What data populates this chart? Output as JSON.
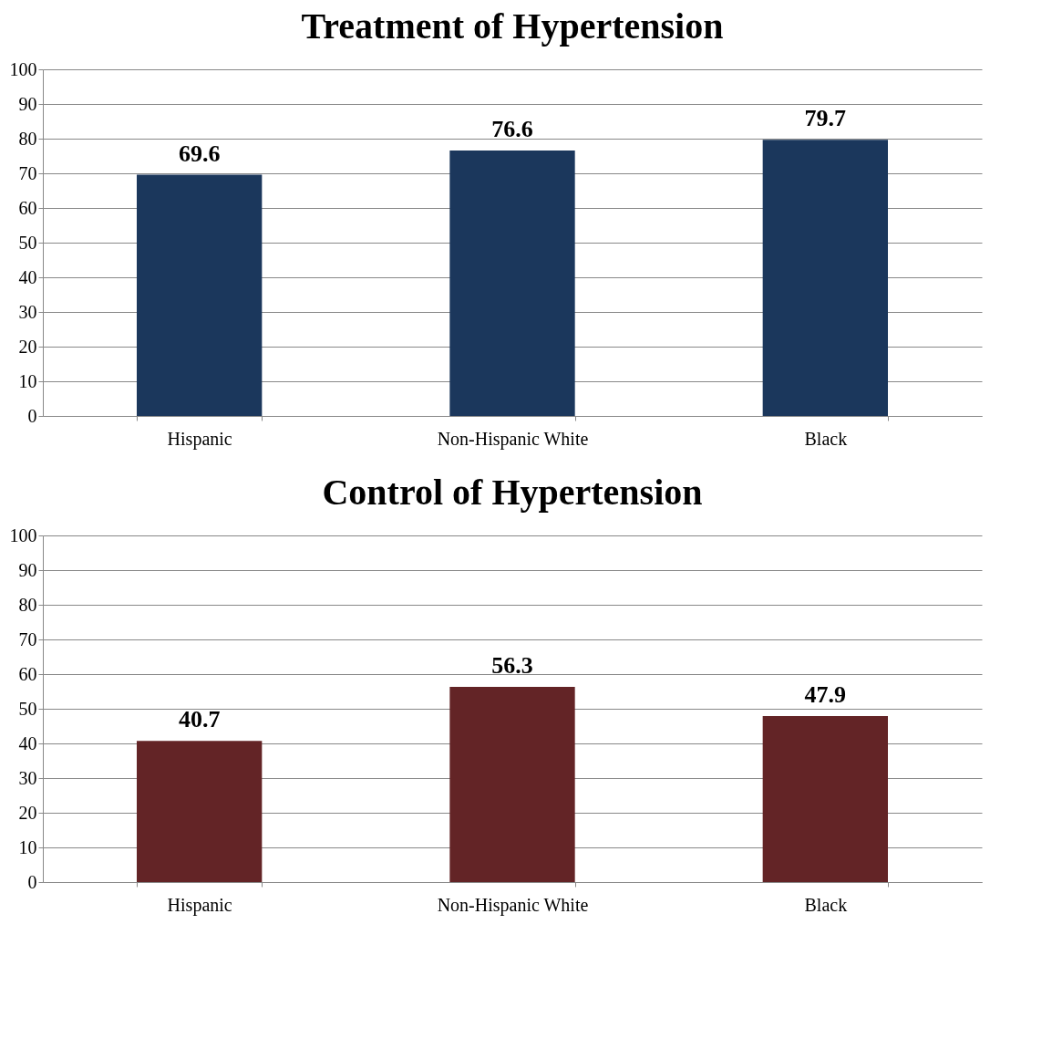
{
  "chart_data": [
    {
      "type": "bar",
      "title": "Treatment of Hypertension",
      "categories": [
        "Hispanic",
        "Non-Hispanic White",
        "Black"
      ],
      "values": [
        69.6,
        76.6,
        79.7
      ],
      "color": "#1b375c",
      "ylim": [
        0,
        100
      ],
      "yticks": [
        0,
        10,
        20,
        30,
        40,
        50,
        60,
        70,
        80,
        90,
        100
      ],
      "grid": "y",
      "data_labels": true
    },
    {
      "type": "bar",
      "title": "Control of Hypertension",
      "categories": [
        "Hispanic",
        "Non-Hispanic White",
        "Black"
      ],
      "values": [
        40.7,
        56.3,
        47.9
      ],
      "color": "#632426",
      "ylim": [
        0,
        100
      ],
      "yticks": [
        0,
        10,
        20,
        30,
        40,
        50,
        60,
        70,
        80,
        90,
        100
      ],
      "grid": "y",
      "data_labels": true
    }
  ]
}
